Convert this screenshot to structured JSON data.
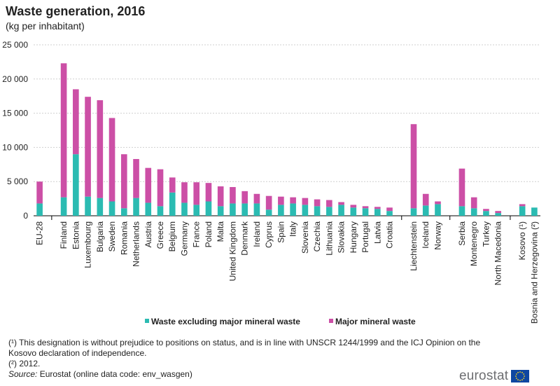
{
  "header": {
    "title": "Waste generation, 2016",
    "subtitle": "(kg per inhabitant)"
  },
  "colors": {
    "series1": "#2bbbb2",
    "series2": "#cc4fa6",
    "grid": "#cfcfcf"
  },
  "chart_data": {
    "type": "bar",
    "stacked": true,
    "title": "Waste generation, 2016",
    "ylabel": "(kg per inhabitant)",
    "xlabel": "",
    "ylim": [
      0,
      25000
    ],
    "yticks": [
      0,
      5000,
      10000,
      15000,
      20000,
      25000
    ],
    "ytick_labels": [
      "0",
      "5 000",
      "10 000",
      "15 000",
      "20 000",
      "25 000"
    ],
    "grid": true,
    "legend_position": "bottom-center",
    "groups": [
      [
        "EU-28"
      ],
      [
        "Finland",
        "Estonia",
        "Luxembourg",
        "Bulgaria",
        "Sweden",
        "Romania",
        "Netherlands",
        "Austria",
        "Greece",
        "Belgium",
        "Germany",
        "France",
        "Poland",
        "Malta",
        "United Kingdom",
        "Denmark",
        "Ireland",
        "Cyprus",
        "Spain",
        "Italy",
        "Slovenia",
        "Czechia",
        "Lithuania",
        "Slovakia",
        "Hungary",
        "Portugal",
        "Latvia",
        "Croatia"
      ],
      [
        "Liechtenstein",
        "Iceland",
        "Norway"
      ],
      [
        "Serbia",
        "Montenegro",
        "Turkey",
        "North Macedonia"
      ],
      [
        "Kosovo (¹)",
        "Bosnia and Herzegovina (²)"
      ]
    ],
    "categories": [
      "EU-28",
      "Finland",
      "Estonia",
      "Luxembourg",
      "Bulgaria",
      "Sweden",
      "Romania",
      "Netherlands",
      "Austria",
      "Greece",
      "Belgium",
      "Germany",
      "France",
      "Poland",
      "Malta",
      "United Kingdom",
      "Denmark",
      "Ireland",
      "Cyprus",
      "Spain",
      "Italy",
      "Slovenia",
      "Czechia",
      "Lithuania",
      "Slovakia",
      "Hungary",
      "Portugal",
      "Latvia",
      "Croatia",
      "Liechtenstein",
      "Iceland",
      "Norway",
      "Serbia",
      "Montenegro",
      "Turkey",
      "North Macedonia",
      "Kosovo (¹)",
      "Bosnia and Herzegovina (²)"
    ],
    "series": [
      {
        "name": "Waste excluding major mineral waste",
        "values": [
          1800,
          2700,
          9000,
          2800,
          2600,
          2100,
          1100,
          2600,
          1900,
          1400,
          3400,
          1900,
          1600,
          2100,
          1400,
          1800,
          1800,
          1800,
          900,
          1600,
          1800,
          1600,
          1400,
          1300,
          1600,
          1200,
          1100,
          1000,
          700,
          1100,
          1500,
          1700,
          1400,
          1100,
          700,
          400,
          1400,
          1200
        ]
      },
      {
        "name": "Major mineral waste",
        "values": [
          3200,
          19600,
          9500,
          14600,
          14300,
          12200,
          7900,
          5700,
          5100,
          5400,
          2200,
          3000,
          3300,
          2700,
          2900,
          2400,
          1800,
          1400,
          2000,
          1200,
          900,
          1000,
          1000,
          1000,
          400,
          400,
          300,
          300,
          500,
          12300,
          1700,
          400,
          5500,
          1600,
          300,
          300,
          300,
          0
        ]
      }
    ]
  },
  "legend": {
    "item1": "Waste excluding major mineral waste",
    "item2": "Major mineral waste"
  },
  "footnotes": {
    "note1": "(¹) This designation is without prejudice to positions on status, and is in line with UNSCR 1244/1999 and the ICJ Opinion on the Kosovo declaration of independence.",
    "note2": "(²) 2012.",
    "source_label": "Source:",
    "source_text": " Eurostat (online data code: env_wasgen)"
  },
  "logo": {
    "text": "eurostat"
  }
}
